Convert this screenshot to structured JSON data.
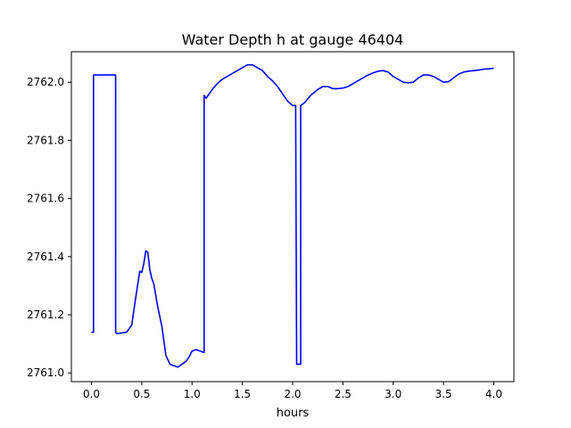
{
  "chart_data": {
    "type": "line",
    "title": "Water Depth h at gauge 46404",
    "xlabel": "hours",
    "ylabel": "",
    "xlim": [
      -0.2,
      4.2
    ],
    "ylim": [
      2760.97,
      2762.105
    ],
    "xticks": [
      0.0,
      0.5,
      1.0,
      1.5,
      2.0,
      2.5,
      3.0,
      3.5,
      4.0
    ],
    "xtick_labels": [
      "0.0",
      "0.5",
      "1.0",
      "1.5",
      "2.0",
      "2.5",
      "3.0",
      "3.5",
      "4.0"
    ],
    "yticks": [
      2761.0,
      2761.2,
      2761.4,
      2761.6,
      2761.8,
      2762.0
    ],
    "ytick_labels": [
      "2761.0",
      "2761.2",
      "2761.4",
      "2761.6",
      "2761.8",
      "2762.0"
    ],
    "grid": false,
    "series": [
      {
        "color": "#0000ff",
        "x": [
          0.0,
          0.02,
          0.02,
          0.24,
          0.24,
          0.25,
          0.35,
          0.4,
          0.44,
          0.48,
          0.5,
          0.52,
          0.54,
          0.56,
          0.58,
          0.6,
          0.62,
          0.66,
          0.7,
          0.74,
          0.78,
          0.82,
          0.86,
          0.9,
          0.94,
          0.97,
          1.0,
          1.04,
          1.08,
          1.12,
          1.12,
          1.14,
          1.16,
          1.2,
          1.25,
          1.3,
          1.35,
          1.4,
          1.45,
          1.5,
          1.55,
          1.6,
          1.65,
          1.7,
          1.75,
          1.8,
          1.85,
          1.9,
          1.95,
          2.0,
          2.03,
          2.04,
          2.04,
          2.08,
          2.08,
          2.12,
          2.18,
          2.25,
          2.3,
          2.35,
          2.4,
          2.45,
          2.5,
          2.55,
          2.6,
          2.65,
          2.7,
          2.75,
          2.8,
          2.85,
          2.9,
          2.95,
          3.0,
          3.05,
          3.1,
          3.15,
          3.2,
          3.25,
          3.3,
          3.35,
          3.4,
          3.45,
          3.5,
          3.55,
          3.6,
          3.65,
          3.7,
          3.75,
          3.8,
          3.85,
          3.9,
          3.95,
          4.0
        ],
        "y": [
          2761.14,
          2761.14,
          2762.025,
          2762.025,
          2761.14,
          2761.135,
          2761.14,
          2761.165,
          2761.26,
          2761.35,
          2761.345,
          2761.375,
          2761.42,
          2761.415,
          2761.355,
          2761.325,
          2761.305,
          2761.225,
          2761.16,
          2761.06,
          2761.03,
          2761.025,
          2761.02,
          2761.03,
          2761.04,
          2761.055,
          2761.075,
          2761.08,
          2761.075,
          2761.07,
          2761.955,
          2761.945,
          2761.955,
          2761.975,
          2761.995,
          2762.01,
          2762.02,
          2762.03,
          2762.04,
          2762.05,
          2762.06,
          2762.06,
          2762.05,
          2762.04,
          2762.02,
          2762.005,
          2761.985,
          2761.96,
          2761.935,
          2761.92,
          2761.92,
          2761.03,
          2761.03,
          2761.03,
          2761.92,
          2761.93,
          2761.955,
          2761.975,
          2761.985,
          2761.985,
          2761.978,
          2761.978,
          2761.98,
          2761.985,
          2761.995,
          2762.005,
          2762.015,
          2762.025,
          2762.032,
          2762.038,
          2762.04,
          2762.035,
          2762.02,
          2762.01,
          2762.0,
          2761.998,
          2762.0,
          2762.015,
          2762.025,
          2762.025,
          2762.02,
          2762.01,
          2762.0,
          2762.002,
          2762.015,
          2762.028,
          2762.035,
          2762.038,
          2762.04,
          2762.042,
          2762.045,
          2762.046,
          2762.048
        ]
      }
    ]
  }
}
